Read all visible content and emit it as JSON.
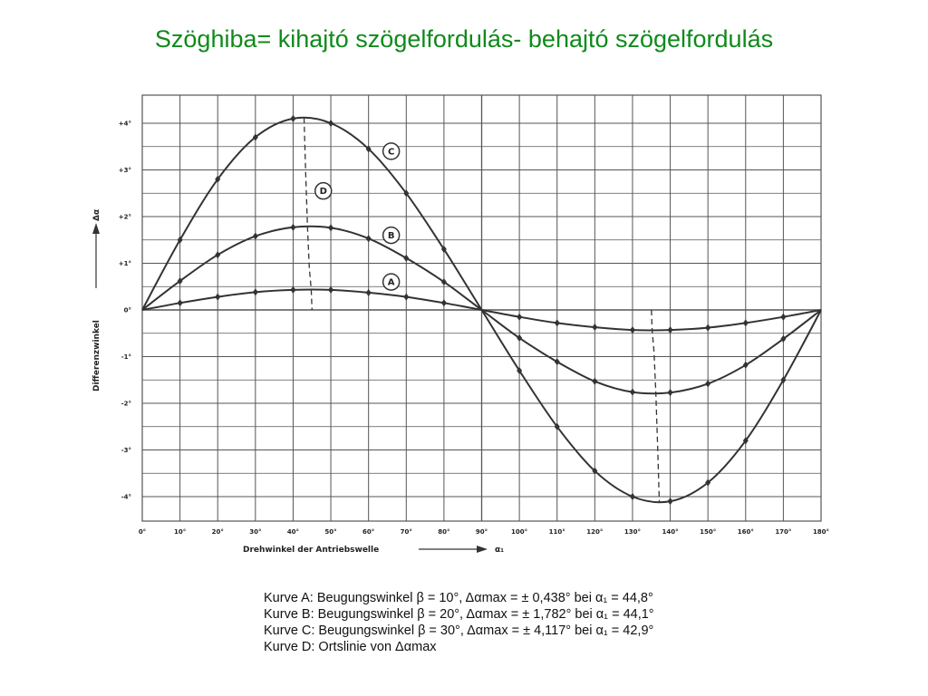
{
  "title": "Szöghiba= kihajtó szögelfordulás- behajtó szögelfordulás",
  "chart_data": {
    "type": "line",
    "xlabel": "Drehwinkel der Antriebswelle",
    "xlabel_symbol": "α₁",
    "ylabel": "Differenzwinkel",
    "ylabel_symbol": "Δα",
    "xlim": [
      0,
      180
    ],
    "ylim": [
      -4,
      4
    ],
    "grid": true,
    "x_ticks": [
      "0°",
      "10°",
      "20°",
      "30°",
      "40°",
      "50°",
      "60°",
      "70°",
      "80°",
      "90°",
      "100°",
      "110°",
      "120°",
      "130°",
      "140°",
      "150°",
      "160°",
      "170°",
      "180°"
    ],
    "y_ticks": [
      "+4°",
      "+3°",
      "+2°",
      "+1°",
      "0°",
      "-1°",
      "-2°",
      "-3°",
      "-4°"
    ],
    "x": [
      0,
      10,
      20,
      30,
      40,
      50,
      60,
      70,
      80,
      90,
      100,
      110,
      120,
      130,
      140,
      150,
      160,
      170,
      180
    ],
    "series": [
      {
        "name": "A",
        "values": [
          0,
          0.15,
          0.28,
          0.38,
          0.43,
          0.43,
          0.37,
          0.28,
          0.15,
          0,
          -0.15,
          -0.28,
          -0.37,
          -0.43,
          -0.43,
          -0.38,
          -0.28,
          -0.15,
          0
        ]
      },
      {
        "name": "B",
        "values": [
          0,
          0.62,
          1.18,
          1.58,
          1.77,
          1.76,
          1.53,
          1.11,
          0.6,
          0,
          -0.6,
          -1.11,
          -1.53,
          -1.76,
          -1.77,
          -1.58,
          -1.18,
          -0.62,
          0
        ]
      },
      {
        "name": "C",
        "values": [
          0,
          1.5,
          2.8,
          3.7,
          4.1,
          4.0,
          3.45,
          2.5,
          1.3,
          0,
          -1.3,
          -2.5,
          -3.45,
          -4.0,
          -4.1,
          -3.7,
          -2.8,
          -1.5,
          0
        ]
      },
      {
        "name": "D",
        "points": [
          [
            42.9,
            4.12
          ],
          [
            43.3,
            3.0
          ],
          [
            43.8,
            1.78
          ],
          [
            44.3,
            0.9
          ],
          [
            44.8,
            0.44
          ],
          [
            45.0,
            0
          ]
        ]
      },
      {
        "name": "D",
        "points": [
          [
            135.0,
            0
          ],
          [
            135.2,
            -0.44
          ],
          [
            135.7,
            -0.9
          ],
          [
            136.2,
            -1.78
          ],
          [
            136.7,
            -3.0
          ],
          [
            137.1,
            -4.12
          ]
        ]
      }
    ],
    "curve_labels": [
      {
        "text": "C",
        "x": 66,
        "y": 3.4
      },
      {
        "text": "D",
        "x": 48,
        "y": 2.55
      },
      {
        "text": "B",
        "x": 66,
        "y": 1.6
      },
      {
        "text": "A",
        "x": 66,
        "y": 0.6
      }
    ]
  },
  "caption": [
    "Kurve A: Beugungswinkel β = 10°, Δαmax = ± 0,438° bei α₁ = 44,8°",
    "Kurve B: Beugungswinkel β = 20°, Δαmax = ± 1,782° bei α₁ = 44,1°",
    "Kurve C: Beugungswinkel β = 30°, Δαmax = ± 4,117° bei α₁ = 42,9°",
    "Kurve D: Ortslinie von Δαmax"
  ],
  "colors": {
    "title": "#0f8a1b",
    "lines": "#333333",
    "grid": "#555555"
  }
}
